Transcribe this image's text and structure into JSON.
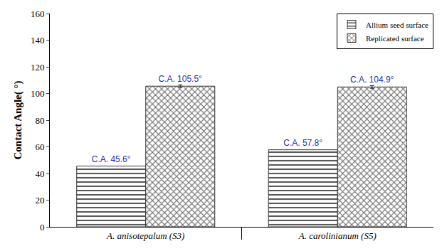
{
  "chart_data": {
    "type": "bar",
    "y_label": "Contact Angle( °)",
    "categories": [
      "A. anisotepalum (S3)",
      "A. carolinianum (S5)"
    ],
    "series": [
      {
        "name": "Allium seed surface",
        "color": "#5a5a5a",
        "values": [
          45.6,
          57.8
        ],
        "value_labels": [
          "C.A. 45.6°",
          "C.A. 57.8°"
        ]
      },
      {
        "name": "Replicated surface",
        "color": "#6a6a6a",
        "values": [
          105.5,
          104.9
        ],
        "value_labels": [
          "C.A. 105.5°",
          "C.A. 104.9°"
        ],
        "errors": [
          1.0,
          1.0
        ]
      }
    ],
    "ylim": [
      0,
      160
    ],
    "yticks": [
      0,
      20,
      40,
      60,
      80,
      100,
      120,
      140,
      160
    ],
    "grid": false,
    "legend": "top-right",
    "data_labels": true
  }
}
